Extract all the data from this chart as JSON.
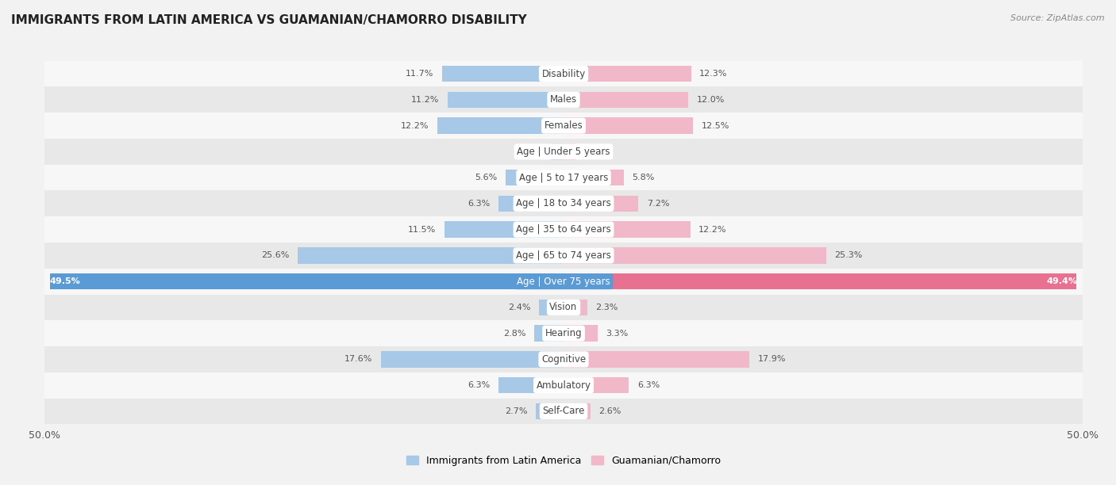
{
  "title": "IMMIGRANTS FROM LATIN AMERICA VS GUAMANIAN/CHAMORRO DISABILITY",
  "source": "Source: ZipAtlas.com",
  "categories": [
    "Disability",
    "Males",
    "Females",
    "Age | Under 5 years",
    "Age | 5 to 17 years",
    "Age | 18 to 34 years",
    "Age | 35 to 64 years",
    "Age | 65 to 74 years",
    "Age | Over 75 years",
    "Vision",
    "Hearing",
    "Cognitive",
    "Ambulatory",
    "Self-Care"
  ],
  "left_values": [
    11.7,
    11.2,
    12.2,
    1.2,
    5.6,
    6.3,
    11.5,
    25.6,
    49.5,
    2.4,
    2.8,
    17.6,
    6.3,
    2.7
  ],
  "right_values": [
    12.3,
    12.0,
    12.5,
    1.2,
    5.8,
    7.2,
    12.2,
    25.3,
    49.4,
    2.3,
    3.3,
    17.9,
    6.3,
    2.6
  ],
  "left_color": "#a8c8e8",
  "right_color": "#f0b8c8",
  "left_highlight_color": "#5b9bd5",
  "right_highlight_color": "#e87090",
  "highlight_index": 8,
  "left_label": "Immigrants from Latin America",
  "right_label": "Guamanian/Chamorro",
  "xlim": 50.0,
  "background_color": "#f2f2f2",
  "row_bg_even": "#f7f7f7",
  "row_bg_odd": "#e8e8e8",
  "label_pill_color": "#ffffff",
  "label_text_color": "#444444",
  "highlight_text_color": "#ffffff",
  "value_text_color": "#555555"
}
